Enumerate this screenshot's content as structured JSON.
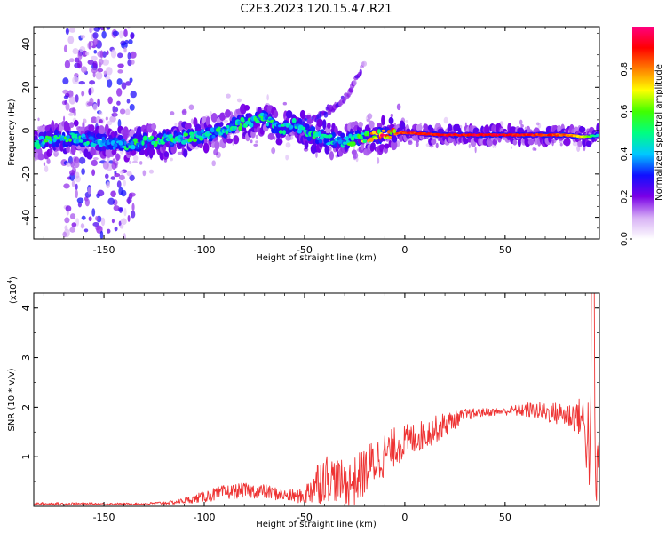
{
  "title": "C2E3.2023.120.15.47.R21",
  "chart_data": [
    {
      "type": "heatmap",
      "xlabel": "Height of straight line (km)",
      "ylabel": "Frequency (Hz)",
      "xlim": [
        -185,
        97
      ],
      "ylim": [
        -50,
        48
      ],
      "xticks": [
        -150,
        -100,
        -50,
        0,
        50
      ],
      "yticks": [
        -40,
        -20,
        0,
        20,
        40
      ],
      "grid": false,
      "colorbar": {
        "label": "Normalized spectral amplitude",
        "range": [
          0.0,
          1.0
        ],
        "ticks": [
          0.0,
          0.2,
          0.4,
          0.6,
          0.8
        ],
        "colormap": [
          "#ffffff",
          "#d7b0f5",
          "#7a00e6",
          "#1010ff",
          "#00c8ff",
          "#00ff80",
          "#40ff00",
          "#ffff00",
          "#ff8000",
          "#ff0000",
          "#ff0080"
        ]
      },
      "ridge": {
        "x": [
          -185,
          -175,
          -165,
          -155,
          -145,
          -135,
          -125,
          -115,
          -105,
          -95,
          -85,
          -75,
          -70,
          -65,
          -60,
          -55,
          -50,
          -45,
          -40,
          -35,
          -30,
          -25,
          -20,
          -10,
          0,
          20,
          40,
          60,
          80,
          90,
          97
        ],
        "y": [
          -6,
          -4,
          -3,
          -5,
          -6,
          -6,
          -5,
          -4,
          -3,
          -1,
          2,
          5,
          6,
          2,
          1,
          3,
          0,
          -2,
          -4,
          -5,
          -5,
          -4,
          -3,
          -2,
          -1,
          -2,
          -2,
          -2,
          -2,
          -3,
          -2
        ],
        "intensity": [
          0.45,
          0.45,
          0.45,
          0.4,
          0.35,
          0.45,
          0.45,
          0.45,
          0.45,
          0.45,
          0.45,
          0.45,
          0.45,
          0.45,
          0.4,
          0.4,
          0.4,
          0.45,
          0.4,
          0.4,
          0.45,
          0.5,
          0.6,
          0.8,
          0.9,
          0.92,
          0.95,
          0.92,
          0.85,
          0.7,
          0.4
        ]
      },
      "branch": {
        "x": [
          -55,
          -45,
          -35,
          -28,
          -25,
          -22,
          -20
        ],
        "y": [
          3,
          6,
          11,
          17,
          22,
          27,
          31
        ],
        "intensity": [
          0.3,
          0.25,
          0.25,
          0.2,
          0.2,
          0.2,
          0.15
        ]
      },
      "vertical_band": {
        "x": [
          -170,
          -135
        ],
        "intensity": 0.15
      }
    },
    {
      "type": "line",
      "xlabel": "Height of straight line (km)",
      "ylabel": "SNR (10 * v/v)",
      "multiplier_label": "(x10",
      "multiplier_exponent": "4",
      "multiplier_close": ")",
      "xlim": [
        -185,
        97
      ],
      "ylim": [
        0,
        4.3
      ],
      "xticks": [
        -150,
        -100,
        -50,
        0,
        50
      ],
      "yticks": [
        1,
        2,
        3,
        4
      ],
      "grid": false,
      "color": "#ee3333",
      "envelope": {
        "x": [
          -185,
          -170,
          -150,
          -130,
          -115,
          -105,
          -100,
          -90,
          -80,
          -70,
          -60,
          -50,
          -45,
          -40,
          -35,
          -30,
          -25,
          -20,
          -15,
          -10,
          -5,
          0,
          10,
          20,
          30,
          40,
          50,
          60,
          70,
          80,
          88,
          92,
          95,
          97
        ],
        "base": [
          0.05,
          0.05,
          0.05,
          0.05,
          0.08,
          0.15,
          0.2,
          0.28,
          0.32,
          0.3,
          0.22,
          0.2,
          0.45,
          0.6,
          0.55,
          0.45,
          0.5,
          0.7,
          0.9,
          1.05,
          1.2,
          1.3,
          1.45,
          1.65,
          1.85,
          1.9,
          1.92,
          1.95,
          1.9,
          1.85,
          1.8,
          1.3,
          0.8,
          0.9
        ],
        "noise": [
          0.03,
          0.03,
          0.02,
          0.02,
          0.04,
          0.08,
          0.12,
          0.15,
          0.15,
          0.15,
          0.12,
          0.15,
          0.45,
          0.5,
          0.45,
          0.45,
          0.5,
          0.5,
          0.5,
          0.45,
          0.4,
          0.35,
          0.3,
          0.25,
          0.12,
          0.08,
          0.08,
          0.15,
          0.2,
          0.25,
          0.4,
          1.1,
          1.6,
          0.4
        ]
      }
    }
  ]
}
